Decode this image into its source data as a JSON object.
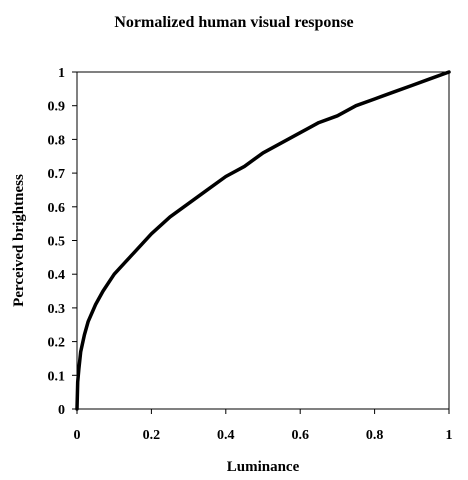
{
  "chart_data": {
    "type": "line",
    "title": "Normalized human visual response",
    "xlabel": "Luminance",
    "ylabel": "Perceived brightness",
    "xlim": [
      0,
      1
    ],
    "ylim": [
      0,
      1
    ],
    "xticks": [
      "0",
      "0.2",
      "0.4",
      "0.6",
      "0.8",
      "1"
    ],
    "yticks": [
      "0",
      "0.1",
      "0.2",
      "0.3",
      "0.4",
      "0.5",
      "0.6",
      "0.7",
      "0.8",
      "0.9",
      "1"
    ],
    "grid": false,
    "legend": false,
    "series": [
      {
        "x": [
          0,
          0.002,
          0.005,
          0.01,
          0.02,
          0.03,
          0.05,
          0.07,
          0.1,
          0.15,
          0.2,
          0.25,
          0.3,
          0.35,
          0.4,
          0.45,
          0.5,
          0.55,
          0.6,
          0.65,
          0.7,
          0.75,
          0.8,
          0.85,
          0.9,
          0.95,
          1.0
        ],
        "y": [
          0,
          0.08,
          0.12,
          0.17,
          0.22,
          0.26,
          0.31,
          0.35,
          0.4,
          0.46,
          0.52,
          0.57,
          0.61,
          0.65,
          0.69,
          0.72,
          0.76,
          0.79,
          0.82,
          0.85,
          0.87,
          0.9,
          0.92,
          0.94,
          0.96,
          0.98,
          1.0
        ]
      }
    ],
    "line_color": "#000000"
  }
}
